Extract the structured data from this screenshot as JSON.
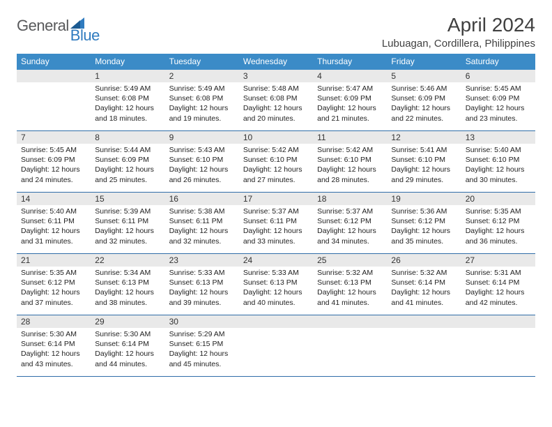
{
  "logo": {
    "part1": "General",
    "part2": "Blue"
  },
  "title": "April 2024",
  "location": "Lubuagan, Cordillera, Philippines",
  "colors": {
    "header_bg": "#3b8bc7",
    "header_text": "#ffffff",
    "row_border": "#2f6da8",
    "daynum_bg": "#e9e9e9",
    "logo_gray": "#58595b",
    "logo_blue": "#2f7bbf"
  },
  "weekdays": [
    "Sunday",
    "Monday",
    "Tuesday",
    "Wednesday",
    "Thursday",
    "Friday",
    "Saturday"
  ],
  "weeks": [
    [
      null,
      {
        "n": "1",
        "sr": "5:49 AM",
        "ss": "6:08 PM",
        "dl": "12 hours and 18 minutes."
      },
      {
        "n": "2",
        "sr": "5:49 AM",
        "ss": "6:08 PM",
        "dl": "12 hours and 19 minutes."
      },
      {
        "n": "3",
        "sr": "5:48 AM",
        "ss": "6:08 PM",
        "dl": "12 hours and 20 minutes."
      },
      {
        "n": "4",
        "sr": "5:47 AM",
        "ss": "6:09 PM",
        "dl": "12 hours and 21 minutes."
      },
      {
        "n": "5",
        "sr": "5:46 AM",
        "ss": "6:09 PM",
        "dl": "12 hours and 22 minutes."
      },
      {
        "n": "6",
        "sr": "5:45 AM",
        "ss": "6:09 PM",
        "dl": "12 hours and 23 minutes."
      }
    ],
    [
      {
        "n": "7",
        "sr": "5:45 AM",
        "ss": "6:09 PM",
        "dl": "12 hours and 24 minutes."
      },
      {
        "n": "8",
        "sr": "5:44 AM",
        "ss": "6:09 PM",
        "dl": "12 hours and 25 minutes."
      },
      {
        "n": "9",
        "sr": "5:43 AM",
        "ss": "6:10 PM",
        "dl": "12 hours and 26 minutes."
      },
      {
        "n": "10",
        "sr": "5:42 AM",
        "ss": "6:10 PM",
        "dl": "12 hours and 27 minutes."
      },
      {
        "n": "11",
        "sr": "5:42 AM",
        "ss": "6:10 PM",
        "dl": "12 hours and 28 minutes."
      },
      {
        "n": "12",
        "sr": "5:41 AM",
        "ss": "6:10 PM",
        "dl": "12 hours and 29 minutes."
      },
      {
        "n": "13",
        "sr": "5:40 AM",
        "ss": "6:10 PM",
        "dl": "12 hours and 30 minutes."
      }
    ],
    [
      {
        "n": "14",
        "sr": "5:40 AM",
        "ss": "6:11 PM",
        "dl": "12 hours and 31 minutes."
      },
      {
        "n": "15",
        "sr": "5:39 AM",
        "ss": "6:11 PM",
        "dl": "12 hours and 32 minutes."
      },
      {
        "n": "16",
        "sr": "5:38 AM",
        "ss": "6:11 PM",
        "dl": "12 hours and 32 minutes."
      },
      {
        "n": "17",
        "sr": "5:37 AM",
        "ss": "6:11 PM",
        "dl": "12 hours and 33 minutes."
      },
      {
        "n": "18",
        "sr": "5:37 AM",
        "ss": "6:12 PM",
        "dl": "12 hours and 34 minutes."
      },
      {
        "n": "19",
        "sr": "5:36 AM",
        "ss": "6:12 PM",
        "dl": "12 hours and 35 minutes."
      },
      {
        "n": "20",
        "sr": "5:35 AM",
        "ss": "6:12 PM",
        "dl": "12 hours and 36 minutes."
      }
    ],
    [
      {
        "n": "21",
        "sr": "5:35 AM",
        "ss": "6:12 PM",
        "dl": "12 hours and 37 minutes."
      },
      {
        "n": "22",
        "sr": "5:34 AM",
        "ss": "6:13 PM",
        "dl": "12 hours and 38 minutes."
      },
      {
        "n": "23",
        "sr": "5:33 AM",
        "ss": "6:13 PM",
        "dl": "12 hours and 39 minutes."
      },
      {
        "n": "24",
        "sr": "5:33 AM",
        "ss": "6:13 PM",
        "dl": "12 hours and 40 minutes."
      },
      {
        "n": "25",
        "sr": "5:32 AM",
        "ss": "6:13 PM",
        "dl": "12 hours and 41 minutes."
      },
      {
        "n": "26",
        "sr": "5:32 AM",
        "ss": "6:14 PM",
        "dl": "12 hours and 41 minutes."
      },
      {
        "n": "27",
        "sr": "5:31 AM",
        "ss": "6:14 PM",
        "dl": "12 hours and 42 minutes."
      }
    ],
    [
      {
        "n": "28",
        "sr": "5:30 AM",
        "ss": "6:14 PM",
        "dl": "12 hours and 43 minutes."
      },
      {
        "n": "29",
        "sr": "5:30 AM",
        "ss": "6:14 PM",
        "dl": "12 hours and 44 minutes."
      },
      {
        "n": "30",
        "sr": "5:29 AM",
        "ss": "6:15 PM",
        "dl": "12 hours and 45 minutes."
      },
      null,
      null,
      null,
      null
    ]
  ],
  "labels": {
    "sunrise": "Sunrise:",
    "sunset": "Sunset:",
    "daylight": "Daylight:"
  }
}
